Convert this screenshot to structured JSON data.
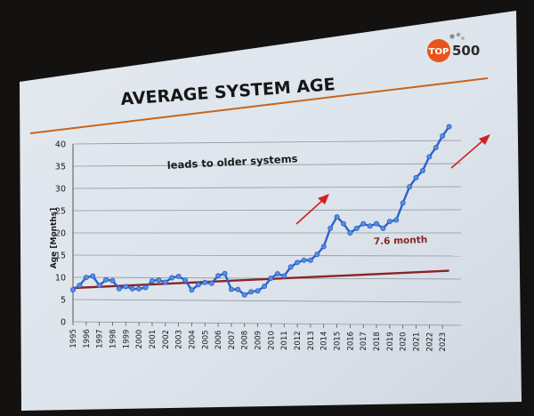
{
  "slide": {
    "title": "AVERAGE SYSTEM AGE",
    "logo": {
      "top": "TOP",
      "num": "500",
      "badge_color": "#e8541c",
      "num_color": "#2a2a2a"
    },
    "accent_line_color": "#c8641c"
  },
  "chart_data": {
    "type": "line",
    "title": "AVERAGE SYSTEM AGE",
    "xlabel": "",
    "ylabel": "Age [Months]",
    "ylim": [
      0,
      40
    ],
    "yticks": [
      0,
      5,
      10,
      15,
      20,
      25,
      30,
      35,
      40
    ],
    "xlim": [
      1995,
      2024
    ],
    "xticks": [
      "1995",
      "1996",
      "1997",
      "1998",
      "1999",
      "2000",
      "2001",
      "2002",
      "2003",
      "2004",
      "2005",
      "2006",
      "2007",
      "2008",
      "2009",
      "2010",
      "2011",
      "2012",
      "2013",
      "2014",
      "2015",
      "2016",
      "2017",
      "2018",
      "2019",
      "2020",
      "2021",
      "2022",
      "2023"
    ],
    "grid": true,
    "series": [
      {
        "type": "line",
        "color": "#2a62c8",
        "x": [
          1995.0,
          1995.5,
          1996.0,
          1996.5,
          1997.0,
          1997.5,
          1998.0,
          1998.5,
          1999.0,
          1999.5,
          2000.0,
          2000.5,
          2001.0,
          2001.5,
          2002.0,
          2002.5,
          2003.0,
          2003.5,
          2004.0,
          2004.5,
          2005.0,
          2005.5,
          2006.0,
          2006.5,
          2007.0,
          2007.5,
          2008.0,
          2008.5,
          2009.0,
          2009.5,
          2010.0,
          2010.5,
          2011.0,
          2011.5,
          2012.0,
          2012.5,
          2013.0,
          2013.5,
          2014.0,
          2014.5,
          2015.0,
          2015.5,
          2016.0,
          2016.5,
          2017.0,
          2017.5,
          2018.0,
          2018.5,
          2019.0,
          2019.5,
          2020.0,
          2020.5,
          2021.0,
          2021.5,
          2022.0,
          2022.5,
          2023.0,
          2023.5
        ],
        "values": [
          7.2,
          8.2,
          10.0,
          10.3,
          8.2,
          9.5,
          9.3,
          7.5,
          8.0,
          7.5,
          7.5,
          7.8,
          9.3,
          9.5,
          9.0,
          10.0,
          10.3,
          9.5,
          7.3,
          8.5,
          9.0,
          8.8,
          10.5,
          11.0,
          7.5,
          7.5,
          6.3,
          7.0,
          7.2,
          8.2,
          10.0,
          11.0,
          10.5,
          12.5,
          13.5,
          14.0,
          14.0,
          15.3,
          17.0,
          21.0,
          23.5,
          22.0,
          20.0,
          21.0,
          22.0,
          21.5,
          22.0,
          21.0,
          22.5,
          22.8,
          26.5,
          30.0,
          32.0,
          33.5,
          36.5,
          38.5,
          41.0,
          43.0
        ]
      },
      {
        "type": "trend",
        "color": "#8a2424",
        "x": [
          1995.0,
          2023.5
        ],
        "values": [
          7.6,
          11.8
        ]
      }
    ],
    "annotations": [
      {
        "text": "leads to older systems",
        "color": "#1a1a1a"
      },
      {
        "text": "7.6 month",
        "color": "#8a2424"
      }
    ],
    "arrow_color": "#d42020"
  }
}
